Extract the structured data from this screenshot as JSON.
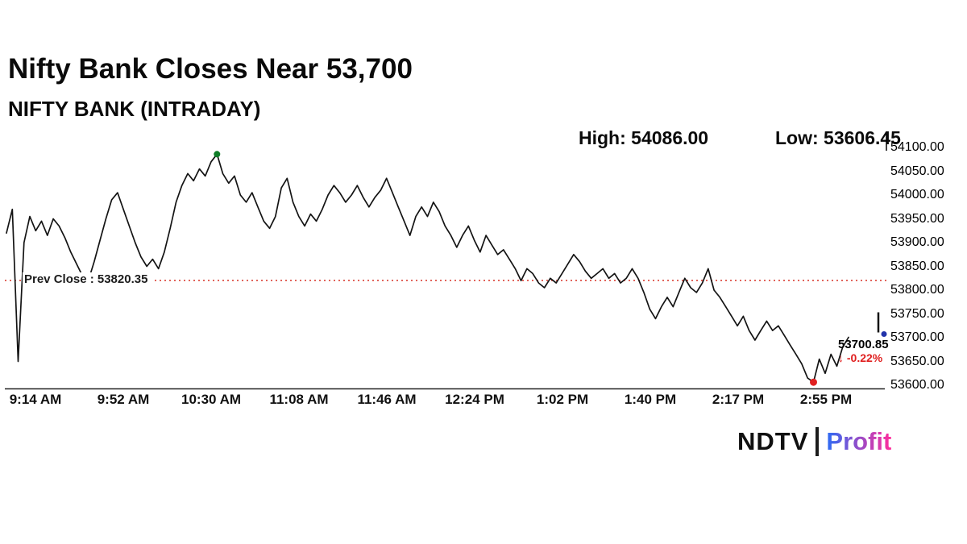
{
  "header": {
    "title": "Nifty Bank Closes Near 53,700",
    "subtitle": "NIFTY BANK (INTRADAY)",
    "high_label": "High: 54086.00",
    "low_label": "Low: 53606.45"
  },
  "chart_data": {
    "type": "line",
    "title": "NIFTY BANK (INTRADAY)",
    "xlabel": "",
    "ylabel": "",
    "grid": false,
    "legend": false,
    "x_ticks": [
      "9:14 AM",
      "9:52 AM",
      "10:30 AM",
      "11:08 AM",
      "11:46 AM",
      "12:24 PM",
      "1:02 PM",
      "1:40 PM",
      "2:17 PM",
      "2:55 PM"
    ],
    "y_ticks": [
      "54100.00",
      "54050.00",
      "54000.00",
      "53950.00",
      "53900.00",
      "53850.00",
      "53800.00",
      "53750.00",
      "53700.00",
      "53650.00",
      "53600.00"
    ],
    "y_axis_min": 53600,
    "y_axis_max": 54100,
    "high": 54086.0,
    "low": 53606.45,
    "prev_close": 53820.35,
    "prev_close_label": "Prev Close : 53820.35",
    "prev_close_color": "#d93025",
    "last_price": 53700.85,
    "last_price_label": "53700.85",
    "change_label": "↓ -0.22%",
    "change_color": "#e02020",
    "line_color": "#141414",
    "high_marker_color": "#0f7d28",
    "low_marker_color": "#e02020",
    "last_marker_color": "#2233aa",
    "series": [
      {
        "name": "NIFTY BANK",
        "values": [
          53920,
          53970,
          53650,
          53900,
          53955,
          53925,
          53945,
          53915,
          53950,
          53935,
          53910,
          53880,
          53855,
          53830,
          53820,
          53860,
          53905,
          53950,
          53990,
          54005,
          53970,
          53935,
          53900,
          53870,
          53850,
          53865,
          53845,
          53880,
          53930,
          53985,
          54020,
          54045,
          54030,
          54055,
          54040,
          54070,
          54086,
          54045,
          54025,
          54040,
          54000,
          53985,
          54005,
          53975,
          53945,
          53930,
          53955,
          54015,
          54035,
          53985,
          53955,
          53935,
          53960,
          53945,
          53970,
          54000,
          54020,
          54005,
          53985,
          54000,
          54020,
          53995,
          53975,
          53995,
          54010,
          54035,
          54005,
          53975,
          53945,
          53915,
          53955,
          53975,
          53955,
          53985,
          53965,
          53935,
          53915,
          53890,
          53915,
          53935,
          53905,
          53880,
          53915,
          53895,
          53875,
          53885,
          53865,
          53845,
          53820,
          53845,
          53835,
          53815,
          53805,
          53825,
          53815,
          53835,
          53855,
          53875,
          53860,
          53840,
          53825,
          53835,
          53845,
          53825,
          53835,
          53815,
          53825,
          53845,
          53825,
          53795,
          53760,
          53740,
          53765,
          53785,
          53765,
          53795,
          53825,
          53805,
          53795,
          53815,
          53845,
          53800,
          53785,
          53765,
          53745,
          53725,
          53745,
          53715,
          53695,
          53715,
          53735,
          53715,
          53725,
          53705,
          53685,
          53665,
          53645,
          53615,
          53606.45,
          53655,
          53625,
          53665,
          53640,
          53680,
          53700.85
        ]
      }
    ]
  },
  "branding": {
    "ndtv": "NDTV",
    "profit": "Profit",
    "profit_gradient": [
      "#2b6cf5",
      "#ff2d9c"
    ]
  }
}
